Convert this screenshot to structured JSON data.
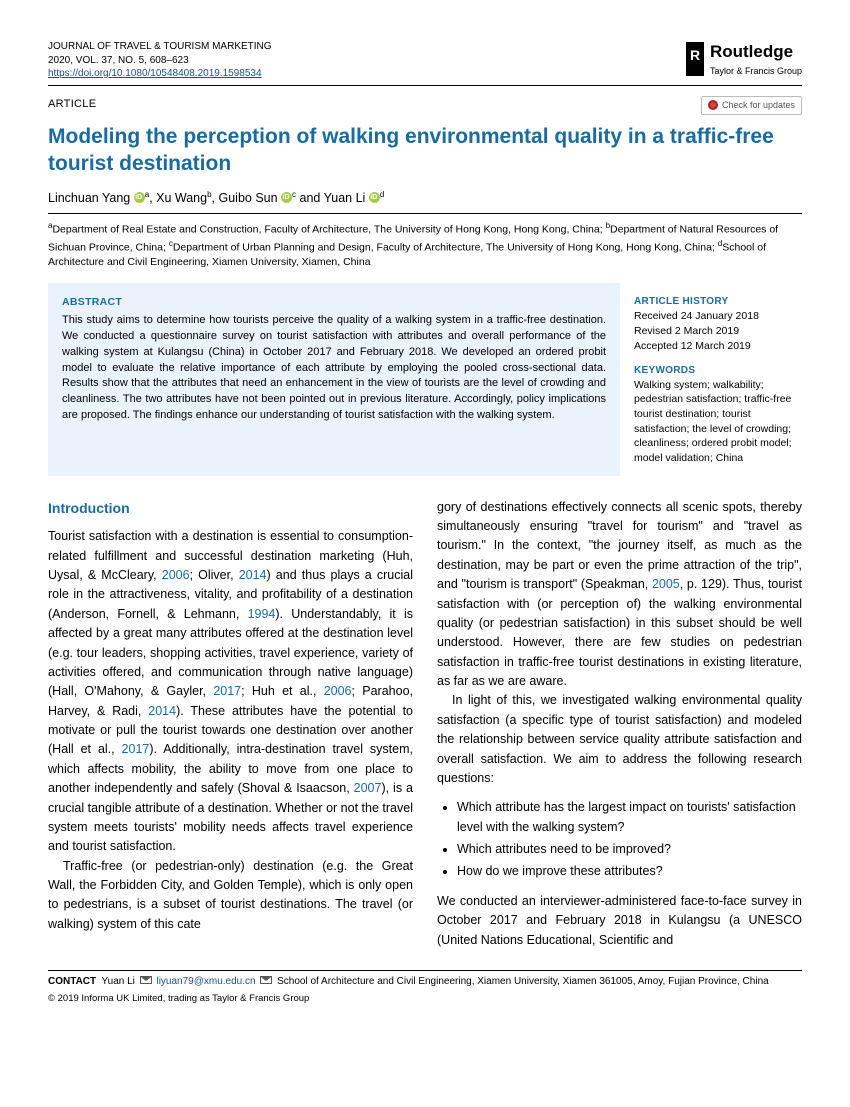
{
  "header": {
    "journal": "JOURNAL OF TRAVEL & TOURISM MARKETING",
    "issue": "2020, VOL. 37, NO. 5, 608–623",
    "doi": "https://doi.org/10.1080/10548408.2019.1598534",
    "publisher_name": "Routledge",
    "publisher_sub": "Taylor & Francis Group"
  },
  "article_type": "ARTICLE",
  "check_updates": "Check for updates",
  "title": "Modeling the perception of walking environmental quality in a traffic-free tourist destination",
  "authors_html": "Linchuan Yang {orcid}<span class='sup'>a</span>, Xu Wang<span class='sup'>b</span>, Guibo Sun {orcid}<span class='sup'>c</span> and Yuan Li {orcid}<span class='sup'>d</span>",
  "affiliations": "<span class='sup'>a</span>Department of Real Estate and Construction, Faculty of Architecture, The University of Hong Kong, Hong Kong, China; <span class='sup'>b</span>Department of Natural Resources of Sichuan Province, China; <span class='sup'>c</span>Department of Urban Planning and Design, Faculty of Architecture, The University of Hong Kong, Hong Kong, China; <span class='sup'>d</span>School of Architecture and Civil Engineering, Xiamen University, Xiamen, China",
  "abstract": {
    "head": "ABSTRACT",
    "text": "This study aims to determine how tourists perceive the quality of a walking system in a traffic-free destination. We conducted a questionnaire survey on tourist satisfaction with attributes and overall performance of the walking system at Kulangsu (China) in October 2017 and February 2018. We developed an ordered probit model to evaluate the relative importance of each attribute by employing the pooled cross-sectional data. Results show that the attributes that need an enhancement in the view of tourists are the level of crowding and cleanliness. The two attributes have not been pointed out in previous literature. Accordingly, policy implications are proposed. The findings enhance our understanding of tourist satisfaction with the walking system."
  },
  "history": {
    "head": "ARTICLE HISTORY",
    "received": "Received 24 January 2018",
    "revised": "Revised 2 March 2019",
    "accepted": "Accepted 12 March 2019"
  },
  "keywords": {
    "head": "KEYWORDS",
    "text": "Walking system; walkability; pedestrian satisfaction; traffic-free tourist destination; tourist satisfaction; the level of crowding; cleanliness; ordered probit model; model validation; China"
  },
  "intro": {
    "head": "Introduction",
    "p1": "Tourist satisfaction with a destination is essential to consumption-related fulfillment and successful destination marketing (Huh, Uysal, & McCleary, <span class='cite'>2006</span>; Oliver, <span class='cite'>2014</span>) and thus plays a crucial role in the attractiveness, vitality, and profitability of a destination (Anderson, Fornell, & Lehmann, <span class='cite'>1994</span>). Understandably, it is affected by a great many attributes offered at the destination level (e.g. tour leaders, shopping activities, travel experience, variety of activities offered, and communication through native language) (Hall, O'Mahony, & Gayler, <span class='cite'>2017</span>; Huh et al., <span class='cite'>2006</span>; Parahoo, Harvey, & Radi, <span class='cite'>2014</span>). These attributes have the potential to motivate or pull the tourist towards one destination over another (Hall et al., <span class='cite'>2017</span>). Additionally, intra-destination travel system, which affects mobility, the ability to move from one place to another independently and safely (Shoval & Isaacson, <span class='cite'>2007</span>), is a crucial tangible attribute of a destination. Whether or not the travel system meets tourists' mobility needs affects travel experience and tourist satisfaction.",
    "p2": "Traffic-free (or pedestrian-only) destination (e.g. the Great Wall, the Forbidden City, and Golden Temple), which is only open to pedestrians, is a subset of tourist destinations. The travel (or walking) system of this cate",
    "p3": "gory of destinations effectively connects all scenic spots, thereby simultaneously ensuring \"travel for tourism\" and \"travel as tourism.\" In the context, \"the journey itself, as much as the destination, may be part or even the prime attraction of the trip\", and \"tourism is transport\" (Speakman, <span class='cite'>2005</span>, p. 129). Thus, tourist satisfaction with (or perception of) the walking environmental quality (or pedestrian satisfaction) in this subset should be well understood. However, there are few studies on pedestrian satisfaction in traffic-free tourist destinations in existing literature, as far as we are aware.",
    "p4": "In light of this, we investigated walking environmental quality satisfaction (a specific type of tourist satisfaction) and modeled the relationship between service quality attribute satisfaction and overall satisfaction. We aim to address the following research questions:",
    "q1": "Which attribute has the largest impact on tourists' satisfaction level with the walking system?",
    "q2": "Which attributes need to be improved?",
    "q3": "How do we improve these attributes?",
    "p5": "We conducted an interviewer-administered face-to-face survey in October 2017 and February 2018 in Kulangsu (a UNESCO (United Nations Educational, Scientific and"
  },
  "footer": {
    "contact_label": "CONTACT",
    "contact_name": "Yuan Li",
    "contact_email": "liyuan79@xmu.edu.cn",
    "contact_addr": "School of Architecture and Civil Engineering, Xiamen University, Xiamen 361005, Amoy, Fujian Province, China",
    "copyright": "© 2019 Informa UK Limited, trading as Taylor & Francis Group"
  }
}
